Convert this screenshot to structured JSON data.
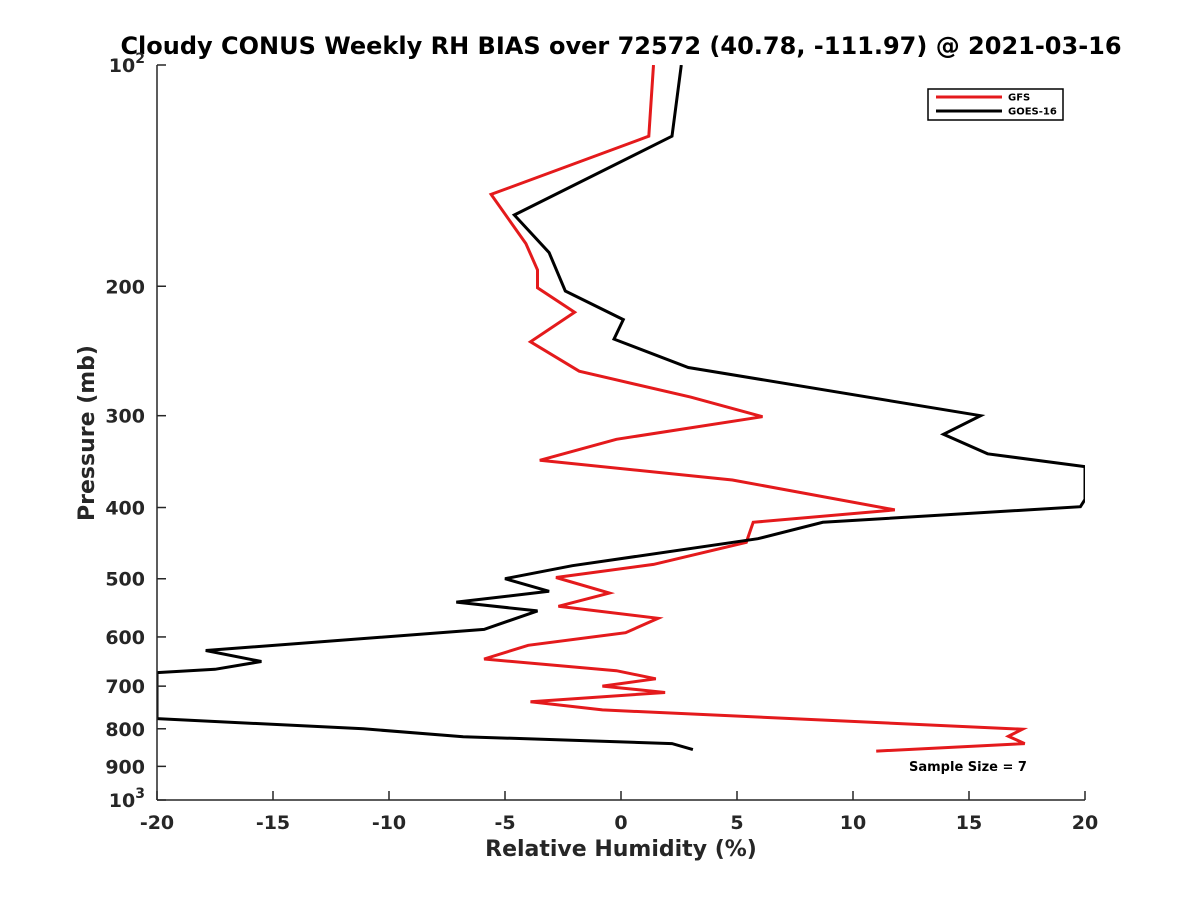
{
  "chart_data": {
    "type": "line",
    "title": "Cloudy CONUS Weekly RH BIAS over 72572 (40.78, -111.97) @ 2021-03-16",
    "xlabel": "Relative Humidity (%)",
    "ylabel": "Pressure (mb)",
    "xlim": [
      -20,
      20
    ],
    "ylim": [
      100,
      1000
    ],
    "y_scale": "log",
    "y_reversed": true,
    "grid": false,
    "legend_position": "top-right",
    "x_ticks": [
      {
        "value": -20,
        "label": "-20"
      },
      {
        "value": -15,
        "label": "-15"
      },
      {
        "value": -10,
        "label": "-10"
      },
      {
        "value": -5,
        "label": "-5"
      },
      {
        "value": 0,
        "label": "0"
      },
      {
        "value": 5,
        "label": "5"
      },
      {
        "value": 10,
        "label": "10"
      },
      {
        "value": 15,
        "label": "15"
      },
      {
        "value": 20,
        "label": "20"
      }
    ],
    "y_ticks": [
      {
        "value": 100,
        "base": "10",
        "exp": "2"
      },
      {
        "value": 200,
        "label": "200"
      },
      {
        "value": 300,
        "label": "300"
      },
      {
        "value": 400,
        "label": "400"
      },
      {
        "value": 500,
        "label": "500"
      },
      {
        "value": 600,
        "label": "600"
      },
      {
        "value": 700,
        "label": "700"
      },
      {
        "value": 800,
        "label": "800"
      },
      {
        "value": 900,
        "label": "900"
      },
      {
        "value": 1000,
        "base": "10",
        "exp": "3"
      }
    ],
    "series": [
      {
        "name": "GFS",
        "color": "#e41a1c",
        "points": [
          {
            "x": 1.4,
            "y": 100
          },
          {
            "x": 1.2,
            "y": 125
          },
          {
            "x": -5.6,
            "y": 150
          },
          {
            "x": -4.1,
            "y": 175
          },
          {
            "x": -3.6,
            "y": 190
          },
          {
            "x": -3.6,
            "y": 201
          },
          {
            "x": -2.0,
            "y": 217
          },
          {
            "x": -3.9,
            "y": 238
          },
          {
            "x": -1.8,
            "y": 261
          },
          {
            "x": 3.0,
            "y": 283
          },
          {
            "x": 6.1,
            "y": 301
          },
          {
            "x": -0.2,
            "y": 323
          },
          {
            "x": -3.5,
            "y": 345
          },
          {
            "x": 4.8,
            "y": 367
          },
          {
            "x": 11.8,
            "y": 403
          },
          {
            "x": 5.7,
            "y": 419
          },
          {
            "x": 5.4,
            "y": 446
          },
          {
            "x": 1.4,
            "y": 478
          },
          {
            "x": -2.8,
            "y": 498
          },
          {
            "x": -0.5,
            "y": 523
          },
          {
            "x": -2.7,
            "y": 545
          },
          {
            "x": 1.6,
            "y": 566
          },
          {
            "x": 0.2,
            "y": 592
          },
          {
            "x": -4.0,
            "y": 616
          },
          {
            "x": -5.9,
            "y": 643
          },
          {
            "x": -0.2,
            "y": 667
          },
          {
            "x": 1.5,
            "y": 684
          },
          {
            "x": -0.8,
            "y": 700
          },
          {
            "x": 1.9,
            "y": 714
          },
          {
            "x": -3.9,
            "y": 735
          },
          {
            "x": -0.8,
            "y": 754
          },
          {
            "x": 17.3,
            "y": 801
          },
          {
            "x": 16.7,
            "y": 819
          },
          {
            "x": 17.4,
            "y": 838
          },
          {
            "x": 11.0,
            "y": 858
          }
        ]
      },
      {
        "name": "GOES-16",
        "color": "#000000",
        "points": [
          {
            "x": 2.6,
            "y": 100
          },
          {
            "x": 2.2,
            "y": 125
          },
          {
            "x": -4.6,
            "y": 160
          },
          {
            "x": -3.1,
            "y": 180
          },
          {
            "x": -2.4,
            "y": 203
          },
          {
            "x": 0.1,
            "y": 222
          },
          {
            "x": -0.3,
            "y": 236
          },
          {
            "x": 2.9,
            "y": 258
          },
          {
            "x": 15.5,
            "y": 300
          },
          {
            "x": 13.9,
            "y": 318
          },
          {
            "x": 15.8,
            "y": 338
          },
          {
            "x": 20.0,
            "y": 352
          },
          {
            "x": 20.0,
            "y": 390
          },
          {
            "x": 19.8,
            "y": 399
          },
          {
            "x": 8.7,
            "y": 419
          },
          {
            "x": 5.9,
            "y": 441
          },
          {
            "x": -2.1,
            "y": 480
          },
          {
            "x": -5.0,
            "y": 500
          },
          {
            "x": -3.1,
            "y": 520
          },
          {
            "x": -7.1,
            "y": 538
          },
          {
            "x": -3.6,
            "y": 553
          },
          {
            "x": -5.9,
            "y": 586
          },
          {
            "x": -17.9,
            "y": 626
          },
          {
            "x": -15.5,
            "y": 648
          },
          {
            "x": -17.5,
            "y": 664
          },
          {
            "x": -20.0,
            "y": 671
          },
          {
            "x": -20.0,
            "y": 775
          },
          {
            "x": -11.1,
            "y": 800
          },
          {
            "x": -6.8,
            "y": 820
          },
          {
            "x": 2.2,
            "y": 838
          },
          {
            "x": 3.1,
            "y": 854
          }
        ]
      }
    ],
    "annotation": "Sample Size = 7"
  }
}
